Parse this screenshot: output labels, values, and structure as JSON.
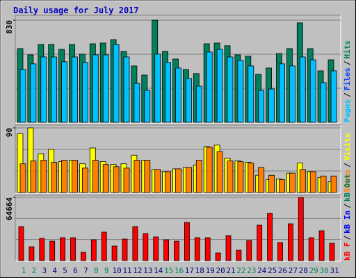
{
  "title": "Daily usage for July 2017",
  "legend_separator": "/",
  "chart_data": [
    {
      "type": "bar",
      "ylim": [
        0,
        830
      ],
      "yticks": [
        830
      ],
      "grid_lines": 3,
      "series": [
        {
          "name": "Pages",
          "color": "#00c0ff",
          "values": [
            429,
            475,
            531,
            531,
            492,
            531,
            486,
            548,
            548,
            633,
            531,
            316,
            260,
            554,
            486,
            441,
            356,
            294,
            571,
            593,
            531,
            503,
            458,
            260,
            271,
            475,
            458,
            531,
            508,
            322,
            418
          ]
        },
        {
          "name": "Files",
          "color": "#0040ff",
          "values": [
            60,
            55,
            62,
            62,
            58,
            60,
            55,
            62,
            64,
            130,
            60,
            50,
            45,
            70,
            55,
            52,
            48,
            45,
            62,
            64,
            60,
            55,
            52,
            45,
            47,
            55,
            55,
            62,
            58,
            48,
            52
          ]
        },
        {
          "name": "Hits",
          "color": "#00805c",
          "values": [
            599,
            548,
            633,
            633,
            593,
            633,
            554,
            638,
            644,
            672,
            576,
            458,
            384,
            830,
            576,
            514,
            429,
            396,
            638,
            644,
            622,
            548,
            537,
            390,
            441,
            559,
            599,
            808,
            599,
            418,
            508
          ]
        }
      ]
    },
    {
      "type": "bar",
      "ylim": [
        0,
        90
      ],
      "yticks": [
        90
      ],
      "grid_lines": 3,
      "series": [
        {
          "name": "Sites",
          "color": "#ff8000",
          "values": [
            40,
            44,
            45,
            42,
            45,
            45,
            34,
            45,
            39,
            36,
            34,
            45,
            45,
            32,
            29,
            33,
            35,
            45,
            63,
            57,
            44,
            43,
            41,
            35,
            24,
            18,
            27,
            32,
            29,
            23,
            23
          ]
        },
        {
          "name": "Visits",
          "color": "#ffff00",
          "values": [
            82,
            90,
            54,
            60,
            43,
            45,
            40,
            62,
            43,
            39,
            40,
            52,
            45,
            32,
            29,
            33,
            35,
            38,
            64,
            66,
            48,
            44,
            42,
            24,
            18,
            19,
            27,
            41,
            29,
            21,
            15
          ]
        }
      ]
    },
    {
      "type": "bar",
      "ylim": [
        0,
        64664
      ],
      "yticks": [
        64664
      ],
      "grid_lines": 3,
      "categories": [
        "1",
        "2",
        "3",
        "4",
        "5",
        "6",
        "7",
        "8",
        "9",
        "10",
        "11",
        "12",
        "13",
        "14",
        "15",
        "16",
        "17",
        "18",
        "19",
        "20",
        "21",
        "22",
        "23",
        "24",
        "25",
        "26",
        "27",
        "28",
        "29",
        "30",
        "31"
      ],
      "category_colors": [
        "#00805c",
        "#00805c",
        "#000080",
        "#000080",
        "#000080",
        "#000080",
        "#000080",
        "#00805c",
        "#00805c",
        "#000080",
        "#000080",
        "#000080",
        "#000080",
        "#000080",
        "#00805c",
        "#00805c",
        "#000080",
        "#000080",
        "#000080",
        "#000080",
        "#000080",
        "#00805c",
        "#00805c",
        "#000080",
        "#000080",
        "#000080",
        "#000080",
        "#000080",
        "#00805c",
        "#00805c",
        "#000080"
      ],
      "series": [
        {
          "name": "kB F",
          "color": "#ff0000",
          "values": [
            34820,
            14212,
            22739,
            19897,
            23450,
            23450,
            8527,
            21318,
            29135,
            14923,
            22029,
            34820,
            27713,
            24160,
            21318,
            19897,
            39083,
            23450,
            23450,
            7817,
            25582,
            10659,
            20607,
            36241,
            48321,
            18476,
            37662,
            64664,
            23450,
            30556,
            17765
          ]
        },
        {
          "name": "kB In",
          "color": "#0000ff"
        },
        {
          "name": "kB Out",
          "color": "#00805c"
        }
      ]
    }
  ]
}
